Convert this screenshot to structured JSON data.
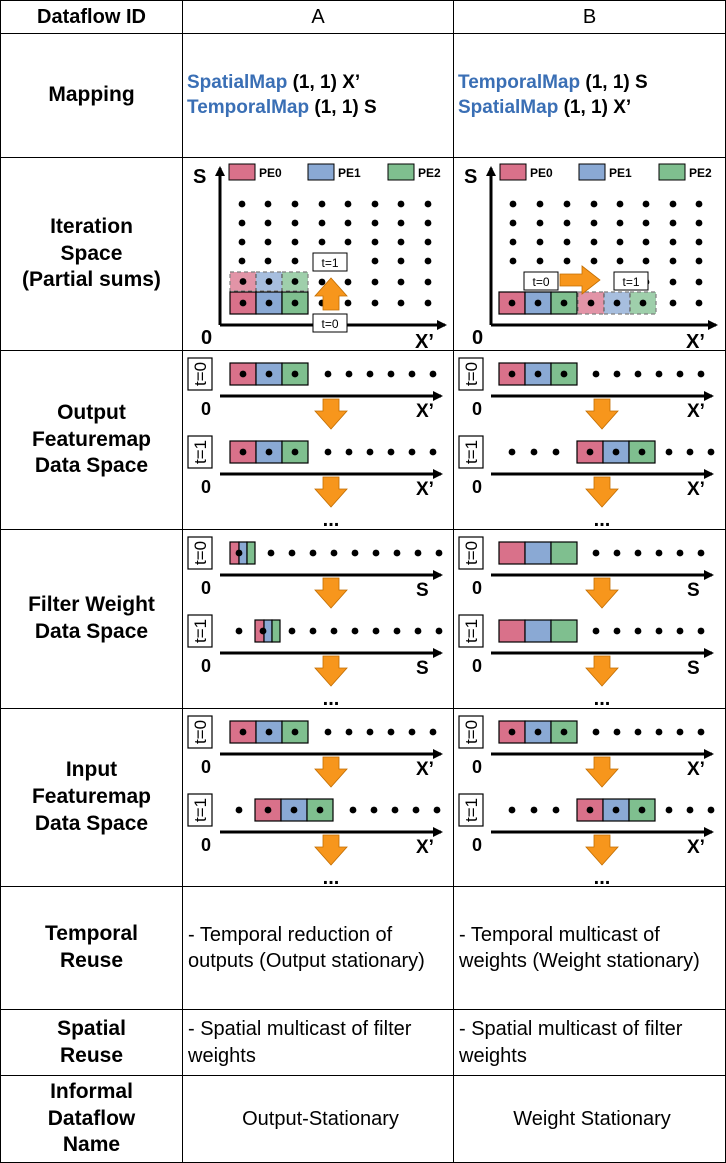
{
  "header": {
    "col0": "Dataflow ID",
    "colA": "A",
    "colB": "B"
  },
  "rows": {
    "mapping": "Mapping",
    "iteration": [
      "Iteration",
      "Space",
      "(Partial sums)"
    ],
    "output": [
      "Output",
      "Featuremap",
      "Data Space"
    ],
    "filter": [
      "Filter Weight",
      "Data Space"
    ],
    "input": [
      "Input",
      "Featuremap",
      "Data Space"
    ],
    "temporal": [
      "Temporal",
      "Reuse"
    ],
    "spatial": [
      "Spatial",
      "Reuse"
    ],
    "informal": [
      "Informal",
      "Dataflow",
      "Name"
    ]
  },
  "mapping": {
    "A": [
      {
        "dir": "SpatialMap",
        "args": "(1, 1) X’"
      },
      {
        "dir": "TemporalMap",
        "args": "(1, 1) S"
      }
    ],
    "B": [
      {
        "dir": "TemporalMap",
        "args": "(1, 1) S"
      },
      {
        "dir": "SpatialMap",
        "args": "(1, 1) X’"
      }
    ]
  },
  "legend": [
    "PE0",
    "PE1",
    "PE2"
  ],
  "colors": {
    "pe0": "#d9718a",
    "pe1": "#8aa9d4",
    "pe2": "#7fbf8f",
    "arrow": "#f7961c",
    "blue_text": "#3a6fb5"
  },
  "labels": {
    "s_axis": "S",
    "x_axis": "X’",
    "zero": "0",
    "t0": "t=0",
    "t1": "t=1",
    "ellipsis": "..."
  },
  "temporal_reuse": {
    "A": [
      "- Temporal reduction of",
      "outputs (Output stationary)"
    ],
    "B": [
      "- Temporal multicast of",
      "weights (Weight stationary)"
    ]
  },
  "spatial_reuse": {
    "A": [
      "- Spatial multicast of filter",
      "weights"
    ],
    "B": [
      "- Spatial multicast of filter",
      "weights"
    ]
  },
  "informal_name": {
    "A": "Output-Stationary",
    "B": "Weight Stationary"
  }
}
